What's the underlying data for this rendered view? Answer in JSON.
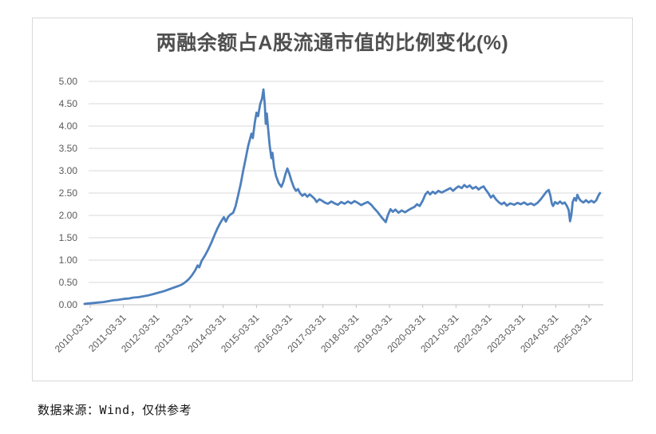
{
  "page": {
    "background": "#ffffff"
  },
  "chart": {
    "title": "两融余额占A股流通市值的比例变化(%)",
    "footer": "数据来源：Wind，仅供参考"
  },
  "chart_data": {
    "type": "line",
    "title": "两融余额占A股流通市值的比例变化(%)",
    "source_note": "数据来源：Wind，仅供参考",
    "legend": {
      "visible": false
    },
    "grid": {
      "horizontal": true,
      "vertical": false
    },
    "colors": {
      "line": "#4E80BD",
      "gridline": "#d9d9d9",
      "axis": "#bfbfbf",
      "tick_label": "#595959",
      "title": "#505050",
      "border": "#d9d9d9"
    },
    "y_axis": {
      "min": 0,
      "max": 5,
      "tick_step": 0.5,
      "tick_labels": [
        "0.00",
        "0.50",
        "1.00",
        "1.50",
        "2.00",
        "2.50",
        "3.00",
        "3.50",
        "4.00",
        "4.50",
        "5.00"
      ]
    },
    "x_axis": {
      "tick_labels": [
        "2010-03-31",
        "2011-03-31",
        "2012-03-31",
        "2013-03-31",
        "2014-03-31",
        "2015-03-31",
        "2016-03-31",
        "2017-03-31",
        "2018-03-31",
        "2019-03-31",
        "2020-03-31",
        "2021-03-31",
        "2022-03-31",
        "2023-03-31",
        "2024-03-31",
        "2025-03-31"
      ],
      "first_tick_year": 2010.25,
      "tick_interval_years": 1,
      "label_rotation_deg": -45
    },
    "series": [
      {
        "name": "两融余额占A股流通市值的比例变化(%)",
        "color": "#4E80BD",
        "points": [
          [
            2010.08,
            0.02
          ],
          [
            2010.2,
            0.03
          ],
          [
            2010.35,
            0.04
          ],
          [
            2010.5,
            0.05
          ],
          [
            2010.65,
            0.06
          ],
          [
            2010.8,
            0.08
          ],
          [
            2010.95,
            0.1
          ],
          [
            2011.1,
            0.11
          ],
          [
            2011.25,
            0.13
          ],
          [
            2011.4,
            0.14
          ],
          [
            2011.55,
            0.16
          ],
          [
            2011.7,
            0.17
          ],
          [
            2011.85,
            0.19
          ],
          [
            2012.0,
            0.21
          ],
          [
            2012.15,
            0.24
          ],
          [
            2012.3,
            0.27
          ],
          [
            2012.45,
            0.3
          ],
          [
            2012.6,
            0.34
          ],
          [
            2012.75,
            0.38
          ],
          [
            2012.9,
            0.42
          ],
          [
            2013.0,
            0.45
          ],
          [
            2013.1,
            0.5
          ],
          [
            2013.2,
            0.56
          ],
          [
            2013.3,
            0.65
          ],
          [
            2013.4,
            0.76
          ],
          [
            2013.48,
            0.88
          ],
          [
            2013.53,
            0.84
          ],
          [
            2013.6,
            0.98
          ],
          [
            2013.7,
            1.1
          ],
          [
            2013.8,
            1.24
          ],
          [
            2013.9,
            1.4
          ],
          [
            2014.0,
            1.58
          ],
          [
            2014.07,
            1.7
          ],
          [
            2014.14,
            1.8
          ],
          [
            2014.2,
            1.88
          ],
          [
            2014.27,
            1.96
          ],
          [
            2014.33,
            1.86
          ],
          [
            2014.4,
            1.97
          ],
          [
            2014.47,
            2.02
          ],
          [
            2014.55,
            2.06
          ],
          [
            2014.62,
            2.2
          ],
          [
            2014.7,
            2.45
          ],
          [
            2014.78,
            2.72
          ],
          [
            2014.85,
            3.0
          ],
          [
            2014.92,
            3.25
          ],
          [
            2015.0,
            3.55
          ],
          [
            2015.06,
            3.72
          ],
          [
            2015.1,
            3.83
          ],
          [
            2015.14,
            3.73
          ],
          [
            2015.2,
            4.08
          ],
          [
            2015.25,
            4.3
          ],
          [
            2015.3,
            4.22
          ],
          [
            2015.36,
            4.48
          ],
          [
            2015.42,
            4.62
          ],
          [
            2015.46,
            4.82
          ],
          [
            2015.5,
            4.48
          ],
          [
            2015.53,
            4.05
          ],
          [
            2015.56,
            4.28
          ],
          [
            2015.6,
            3.95
          ],
          [
            2015.65,
            3.55
          ],
          [
            2015.7,
            3.28
          ],
          [
            2015.73,
            3.4
          ],
          [
            2015.78,
            3.08
          ],
          [
            2015.84,
            2.88
          ],
          [
            2015.92,
            2.72
          ],
          [
            2016.0,
            2.64
          ],
          [
            2016.06,
            2.75
          ],
          [
            2016.12,
            2.92
          ],
          [
            2016.18,
            3.05
          ],
          [
            2016.24,
            2.93
          ],
          [
            2016.3,
            2.78
          ],
          [
            2016.38,
            2.62
          ],
          [
            2016.44,
            2.55
          ],
          [
            2016.5,
            2.59
          ],
          [
            2016.56,
            2.5
          ],
          [
            2016.63,
            2.44
          ],
          [
            2016.7,
            2.48
          ],
          [
            2016.78,
            2.42
          ],
          [
            2016.85,
            2.47
          ],
          [
            2016.93,
            2.42
          ],
          [
            2017.0,
            2.37
          ],
          [
            2017.06,
            2.3
          ],
          [
            2017.14,
            2.36
          ],
          [
            2017.22,
            2.33
          ],
          [
            2017.3,
            2.29
          ],
          [
            2017.4,
            2.26
          ],
          [
            2017.5,
            2.31
          ],
          [
            2017.6,
            2.27
          ],
          [
            2017.7,
            2.24
          ],
          [
            2017.8,
            2.3
          ],
          [
            2017.9,
            2.26
          ],
          [
            2018.0,
            2.31
          ],
          [
            2018.1,
            2.27
          ],
          [
            2018.2,
            2.32
          ],
          [
            2018.3,
            2.28
          ],
          [
            2018.4,
            2.23
          ],
          [
            2018.5,
            2.27
          ],
          [
            2018.6,
            2.3
          ],
          [
            2018.7,
            2.24
          ],
          [
            2018.8,
            2.15
          ],
          [
            2018.9,
            2.07
          ],
          [
            2019.0,
            1.97
          ],
          [
            2019.08,
            1.9
          ],
          [
            2019.14,
            1.85
          ],
          [
            2019.2,
            2.0
          ],
          [
            2019.28,
            2.14
          ],
          [
            2019.35,
            2.08
          ],
          [
            2019.43,
            2.13
          ],
          [
            2019.52,
            2.06
          ],
          [
            2019.62,
            2.11
          ],
          [
            2019.72,
            2.07
          ],
          [
            2019.82,
            2.12
          ],
          [
            2019.92,
            2.16
          ],
          [
            2020.0,
            2.19
          ],
          [
            2020.08,
            2.25
          ],
          [
            2020.16,
            2.21
          ],
          [
            2020.25,
            2.33
          ],
          [
            2020.33,
            2.47
          ],
          [
            2020.4,
            2.53
          ],
          [
            2020.47,
            2.47
          ],
          [
            2020.55,
            2.53
          ],
          [
            2020.63,
            2.49
          ],
          [
            2020.72,
            2.55
          ],
          [
            2020.82,
            2.51
          ],
          [
            2020.92,
            2.55
          ],
          [
            2021.0,
            2.58
          ],
          [
            2021.08,
            2.61
          ],
          [
            2021.16,
            2.55
          ],
          [
            2021.25,
            2.61
          ],
          [
            2021.33,
            2.65
          ],
          [
            2021.42,
            2.61
          ],
          [
            2021.5,
            2.68
          ],
          [
            2021.58,
            2.63
          ],
          [
            2021.66,
            2.67
          ],
          [
            2021.75,
            2.6
          ],
          [
            2021.85,
            2.64
          ],
          [
            2021.93,
            2.58
          ],
          [
            2022.0,
            2.62
          ],
          [
            2022.08,
            2.65
          ],
          [
            2022.15,
            2.57
          ],
          [
            2022.22,
            2.5
          ],
          [
            2022.3,
            2.4
          ],
          [
            2022.37,
            2.45
          ],
          [
            2022.45,
            2.36
          ],
          [
            2022.53,
            2.3
          ],
          [
            2022.62,
            2.25
          ],
          [
            2022.7,
            2.29
          ],
          [
            2022.78,
            2.22
          ],
          [
            2022.88,
            2.27
          ],
          [
            2023.0,
            2.24
          ],
          [
            2023.1,
            2.28
          ],
          [
            2023.2,
            2.25
          ],
          [
            2023.3,
            2.29
          ],
          [
            2023.4,
            2.24
          ],
          [
            2023.5,
            2.27
          ],
          [
            2023.6,
            2.23
          ],
          [
            2023.7,
            2.28
          ],
          [
            2023.8,
            2.36
          ],
          [
            2023.9,
            2.46
          ],
          [
            2023.97,
            2.53
          ],
          [
            2024.04,
            2.57
          ],
          [
            2024.09,
            2.44
          ],
          [
            2024.13,
            2.27
          ],
          [
            2024.17,
            2.21
          ],
          [
            2024.23,
            2.3
          ],
          [
            2024.3,
            2.26
          ],
          [
            2024.38,
            2.31
          ],
          [
            2024.45,
            2.26
          ],
          [
            2024.52,
            2.29
          ],
          [
            2024.58,
            2.22
          ],
          [
            2024.64,
            2.12
          ],
          [
            2024.68,
            1.87
          ],
          [
            2024.72,
            2.02
          ],
          [
            2024.76,
            2.3
          ],
          [
            2024.81,
            2.39
          ],
          [
            2024.86,
            2.33
          ],
          [
            2024.9,
            2.46
          ],
          [
            2024.95,
            2.38
          ],
          [
            2025.0,
            2.33
          ],
          [
            2025.08,
            2.29
          ],
          [
            2025.16,
            2.34
          ],
          [
            2025.24,
            2.29
          ],
          [
            2025.32,
            2.33
          ],
          [
            2025.4,
            2.29
          ],
          [
            2025.47,
            2.34
          ],
          [
            2025.53,
            2.44
          ],
          [
            2025.58,
            2.5
          ]
        ]
      }
    ]
  }
}
